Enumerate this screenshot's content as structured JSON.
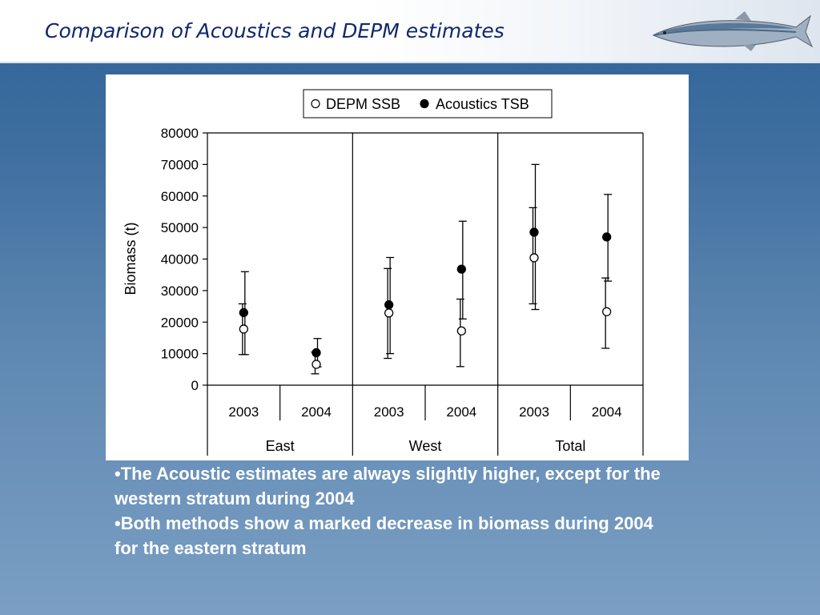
{
  "header": {
    "title": "Comparison of Acoustics and DEPM estimates"
  },
  "chart_data": {
    "type": "scatter",
    "ylabel": "Biomass (t)",
    "ylim": [
      0,
      80000
    ],
    "yticks": [
      0,
      10000,
      20000,
      30000,
      40000,
      50000,
      60000,
      70000,
      80000
    ],
    "groups": [
      "East",
      "West",
      "Total"
    ],
    "categories": [
      "2003",
      "2004",
      "2003",
      "2004",
      "2003",
      "2004"
    ],
    "grid": false,
    "legend_position": "top",
    "series": [
      {
        "name": "DEPM SSB",
        "marker": "open-circle",
        "values": [
          17800,
          6600,
          22900,
          17200,
          40400,
          23300
        ],
        "error_low": [
          9700,
          3600,
          8500,
          5900,
          25800,
          11700
        ],
        "error_high": [
          25800,
          10500,
          37000,
          27300,
          56300,
          34000
        ]
      },
      {
        "name": "Acoustics TSB",
        "marker": "filled-circle",
        "values": [
          23000,
          10300,
          25500,
          36800,
          48500,
          47000
        ],
        "error_low": [
          9700,
          5800,
          10000,
          21000,
          24000,
          33000
        ],
        "error_high": [
          36000,
          14800,
          40500,
          52000,
          70000,
          60500
        ]
      }
    ]
  },
  "bullets": [
    "•The Acoustic estimates are always slightly higher, except for the western stratum during 2004",
    "•Both methods show a marked decrease in biomass during 2004 for the eastern stratum"
  ]
}
